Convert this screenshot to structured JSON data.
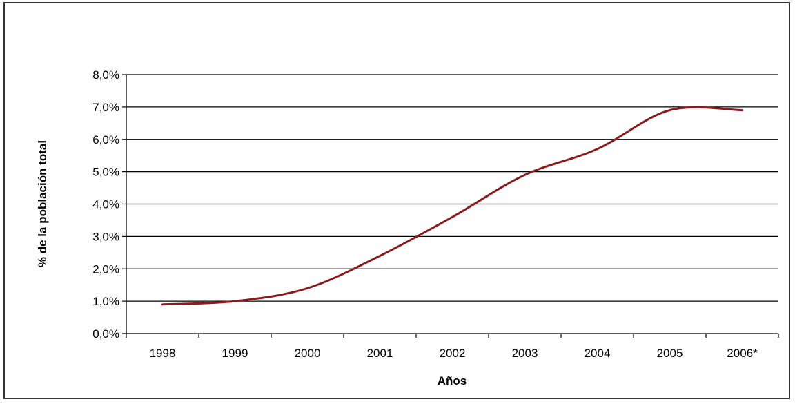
{
  "chart_data": {
    "type": "line",
    "title": "",
    "xlabel": "Años",
    "ylabel": "% de la población total",
    "categories": [
      "1998",
      "1999",
      "2000",
      "2001",
      "2002",
      "2003",
      "2004",
      "2005",
      "2006*"
    ],
    "y_ticks": [
      "0,0%",
      "1,0%",
      "2,0%",
      "3,0%",
      "4,0%",
      "5,0%",
      "6,0%",
      "7,0%",
      "8,0%"
    ],
    "ylim": [
      0,
      8
    ],
    "grid": "horizontal",
    "legend": "none",
    "series": [
      {
        "color": "#8b1a1a",
        "values": [
          0.9,
          1.0,
          1.4,
          2.4,
          3.6,
          4.9,
          5.7,
          6.9,
          6.9
        ]
      }
    ]
  }
}
